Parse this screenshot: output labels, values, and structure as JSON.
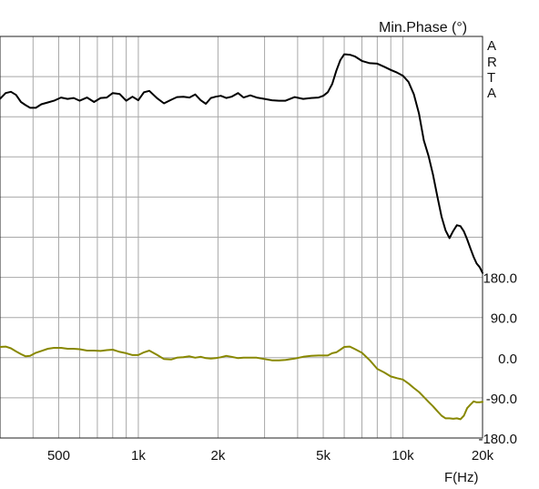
{
  "chart_data": {
    "type": "line",
    "x_scale": "log",
    "x_unit_label": "F(Hz)",
    "right_axis_title": "Min.Phase (°)",
    "brand_letters": [
      "A",
      "R",
      "T",
      "A"
    ],
    "xlim": [
      300,
      20000
    ],
    "ylim": [
      -180,
      720
    ],
    "grid": true,
    "x_ticks": [
      {
        "value": 500,
        "label": "500"
      },
      {
        "value": 1000,
        "label": "1k"
      },
      {
        "value": 2000,
        "label": "2k"
      },
      {
        "value": 5000,
        "label": "5k"
      },
      {
        "value": 10000,
        "label": "10k"
      },
      {
        "value": 20000,
        "label": "20k"
      }
    ],
    "y_ticks": [
      {
        "value": 180,
        "label": "180.0"
      },
      {
        "value": 90,
        "label": "90.0"
      },
      {
        "value": 0,
        "label": "0.0"
      },
      {
        "value": -90,
        "label": "-90.0"
      },
      {
        "value": -180,
        "label": "-180.0"
      }
    ],
    "series": [
      {
        "color": "#000000",
        "x": [
          300,
          315,
          330,
          345,
          360,
          375,
          390,
          410,
          430,
          455,
          480,
          510,
          540,
          570,
          600,
          640,
          680,
          720,
          760,
          800,
          850,
          900,
          950,
          1000,
          1050,
          1100,
          1180,
          1250,
          1330,
          1400,
          1480,
          1560,
          1640,
          1720,
          1800,
          1880,
          1960,
          2050,
          2150,
          2250,
          2380,
          2500,
          2650,
          2800,
          3000,
          3200,
          3400,
          3600,
          3900,
          4200,
          4500,
          4800,
          5000,
          5200,
          5400,
          5600,
          5800,
          6000,
          6300,
          6600,
          7000,
          7500,
          8000,
          8500,
          9000,
          9500,
          10000,
          10500,
          11000,
          11500,
          12000,
          12500,
          13000,
          13500,
          14000,
          14500,
          15000,
          15500,
          16000,
          16500,
          17000,
          17500,
          18000,
          18500,
          19000,
          19500,
          20000
        ],
        "y": [
          580,
          593,
          596,
          589,
          573,
          566,
          560,
          560,
          568,
          572,
          576,
          583,
          580,
          582,
          576,
          583,
          573,
          582,
          583,
          593,
          591,
          576,
          585,
          577,
          595,
          598,
          581,
          570,
          578,
          584,
          585,
          583,
          590,
          577,
          569,
          582,
          585,
          587,
          582,
          585,
          593,
          583,
          588,
          583,
          580,
          577,
          576,
          576,
          584,
          580,
          582,
          583,
          587,
          595,
          613,
          643,
          667,
          680,
          679,
          675,
          665,
          660,
          659,
          652,
          645,
          639,
          632,
          618,
          590,
          547,
          487,
          452,
          410,
          361,
          316,
          285,
          268,
          284,
          297,
          295,
          283,
          265,
          245,
          226,
          211,
          203,
          190
        ]
      },
      {
        "color": "#888800",
        "x": [
          300,
          315,
          330,
          345,
          360,
          375,
          390,
          410,
          430,
          455,
          480,
          510,
          540,
          570,
          600,
          640,
          680,
          720,
          760,
          800,
          850,
          900,
          950,
          1000,
          1050,
          1100,
          1180,
          1250,
          1330,
          1400,
          1480,
          1560,
          1640,
          1720,
          1800,
          1880,
          1960,
          2050,
          2150,
          2250,
          2380,
          2500,
          2650,
          2800,
          3000,
          3200,
          3400,
          3600,
          3900,
          4200,
          4500,
          4800,
          5000,
          5200,
          5400,
          5600,
          5800,
          6000,
          6300,
          6600,
          7000,
          7500,
          8000,
          8500,
          9000,
          9500,
          10000,
          10500,
          11000,
          11500,
          12000,
          12500,
          13000,
          13500,
          14000,
          14500,
          15000,
          15500,
          16000,
          16500,
          17000,
          17500,
          18000,
          18500,
          19000,
          19500,
          20000
        ],
        "y": [
          24,
          25,
          21,
          14,
          8,
          3,
          4,
          11,
          15,
          20,
          22,
          22,
          20,
          20,
          19,
          16,
          16,
          15,
          17,
          18,
          13,
          10,
          6,
          6,
          12,
          16,
          6,
          -3,
          -4,
          0,
          1,
          3,
          0,
          2,
          -1,
          -2,
          -1,
          1,
          4,
          2,
          -1,
          0,
          0,
          0,
          -3,
          -6,
          -6,
          -5,
          -2,
          2,
          4,
          5,
          5,
          5,
          10,
          12,
          18,
          24,
          25,
          19,
          11,
          -6,
          -25,
          -33,
          -42,
          -46,
          -49,
          -58,
          -68,
          -77,
          -88,
          -99,
          -109,
          -120,
          -130,
          -136,
          -136,
          -137,
          -136,
          -138,
          -130,
          -113,
          -105,
          -98,
          -100,
          -100,
          -99
        ]
      }
    ]
  }
}
